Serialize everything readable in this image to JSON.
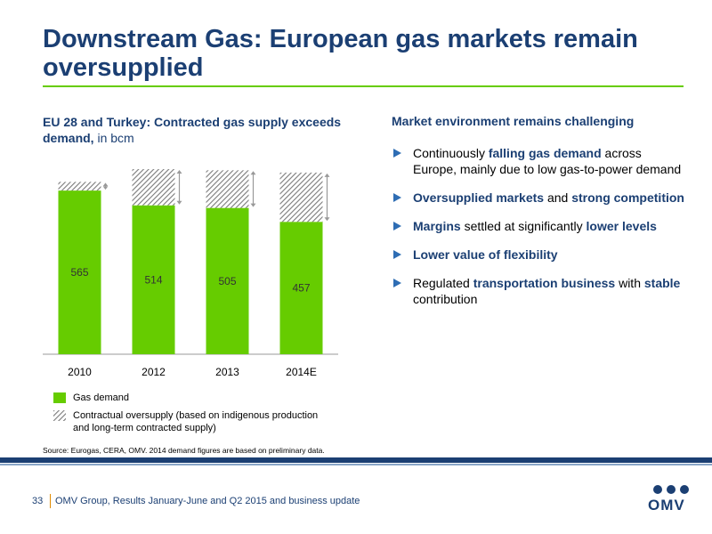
{
  "title": "Downstream Gas: European gas markets remain oversupplied",
  "chart_data": {
    "type": "bar",
    "stacked": true,
    "title": "EU 28 and Turkey: Contracted gas supply exceeds demand,",
    "subtitle": "in bcm",
    "categories": [
      "2010",
      "2012",
      "2013",
      "2014E"
    ],
    "series": [
      {
        "name": "Gas demand",
        "color": "#66cc00",
        "values": [
          565,
          514,
          505,
          457
        ]
      },
      {
        "name": "Contractual oversupply (based on indigenous production and long-term contracted supply)",
        "color": "#7a7a7a",
        "pattern": "hatch",
        "values": [
          30,
          125,
          130,
          170
        ]
      }
    ],
    "source": "Source: Eurogas, CERA, OMV. 2014 demand figures are based on preliminary data."
  },
  "panel": {
    "heading": "Market environment remains challenging",
    "bullets": [
      [
        {
          "text": "Continuously "
        },
        {
          "text": "falling gas demand",
          "bold": true
        },
        {
          "text": " across Europe, mainly due to low gas-to-power demand"
        }
      ],
      [
        {
          "text": "Oversupplied markets",
          "bold": true
        },
        {
          "text": " and "
        },
        {
          "text": "strong competition",
          "bold": true
        }
      ],
      [
        {
          "text": "Margins",
          "bold": true
        },
        {
          "text": " settled at significantly "
        },
        {
          "text": "lower levels",
          "bold": true
        }
      ],
      [
        {
          "text": "Lower value of flexibility",
          "bold": true
        }
      ],
      [
        {
          "text": "Regulated "
        },
        {
          "text": "transportation business",
          "bold": true
        },
        {
          "text": " with "
        },
        {
          "text": "stable",
          "bold": true
        },
        {
          "text": " contribution"
        }
      ]
    ]
  },
  "footer": {
    "page": "33",
    "text": "OMV Group, Results January-June and Q2 2015 and business update",
    "logo": "OMV"
  }
}
